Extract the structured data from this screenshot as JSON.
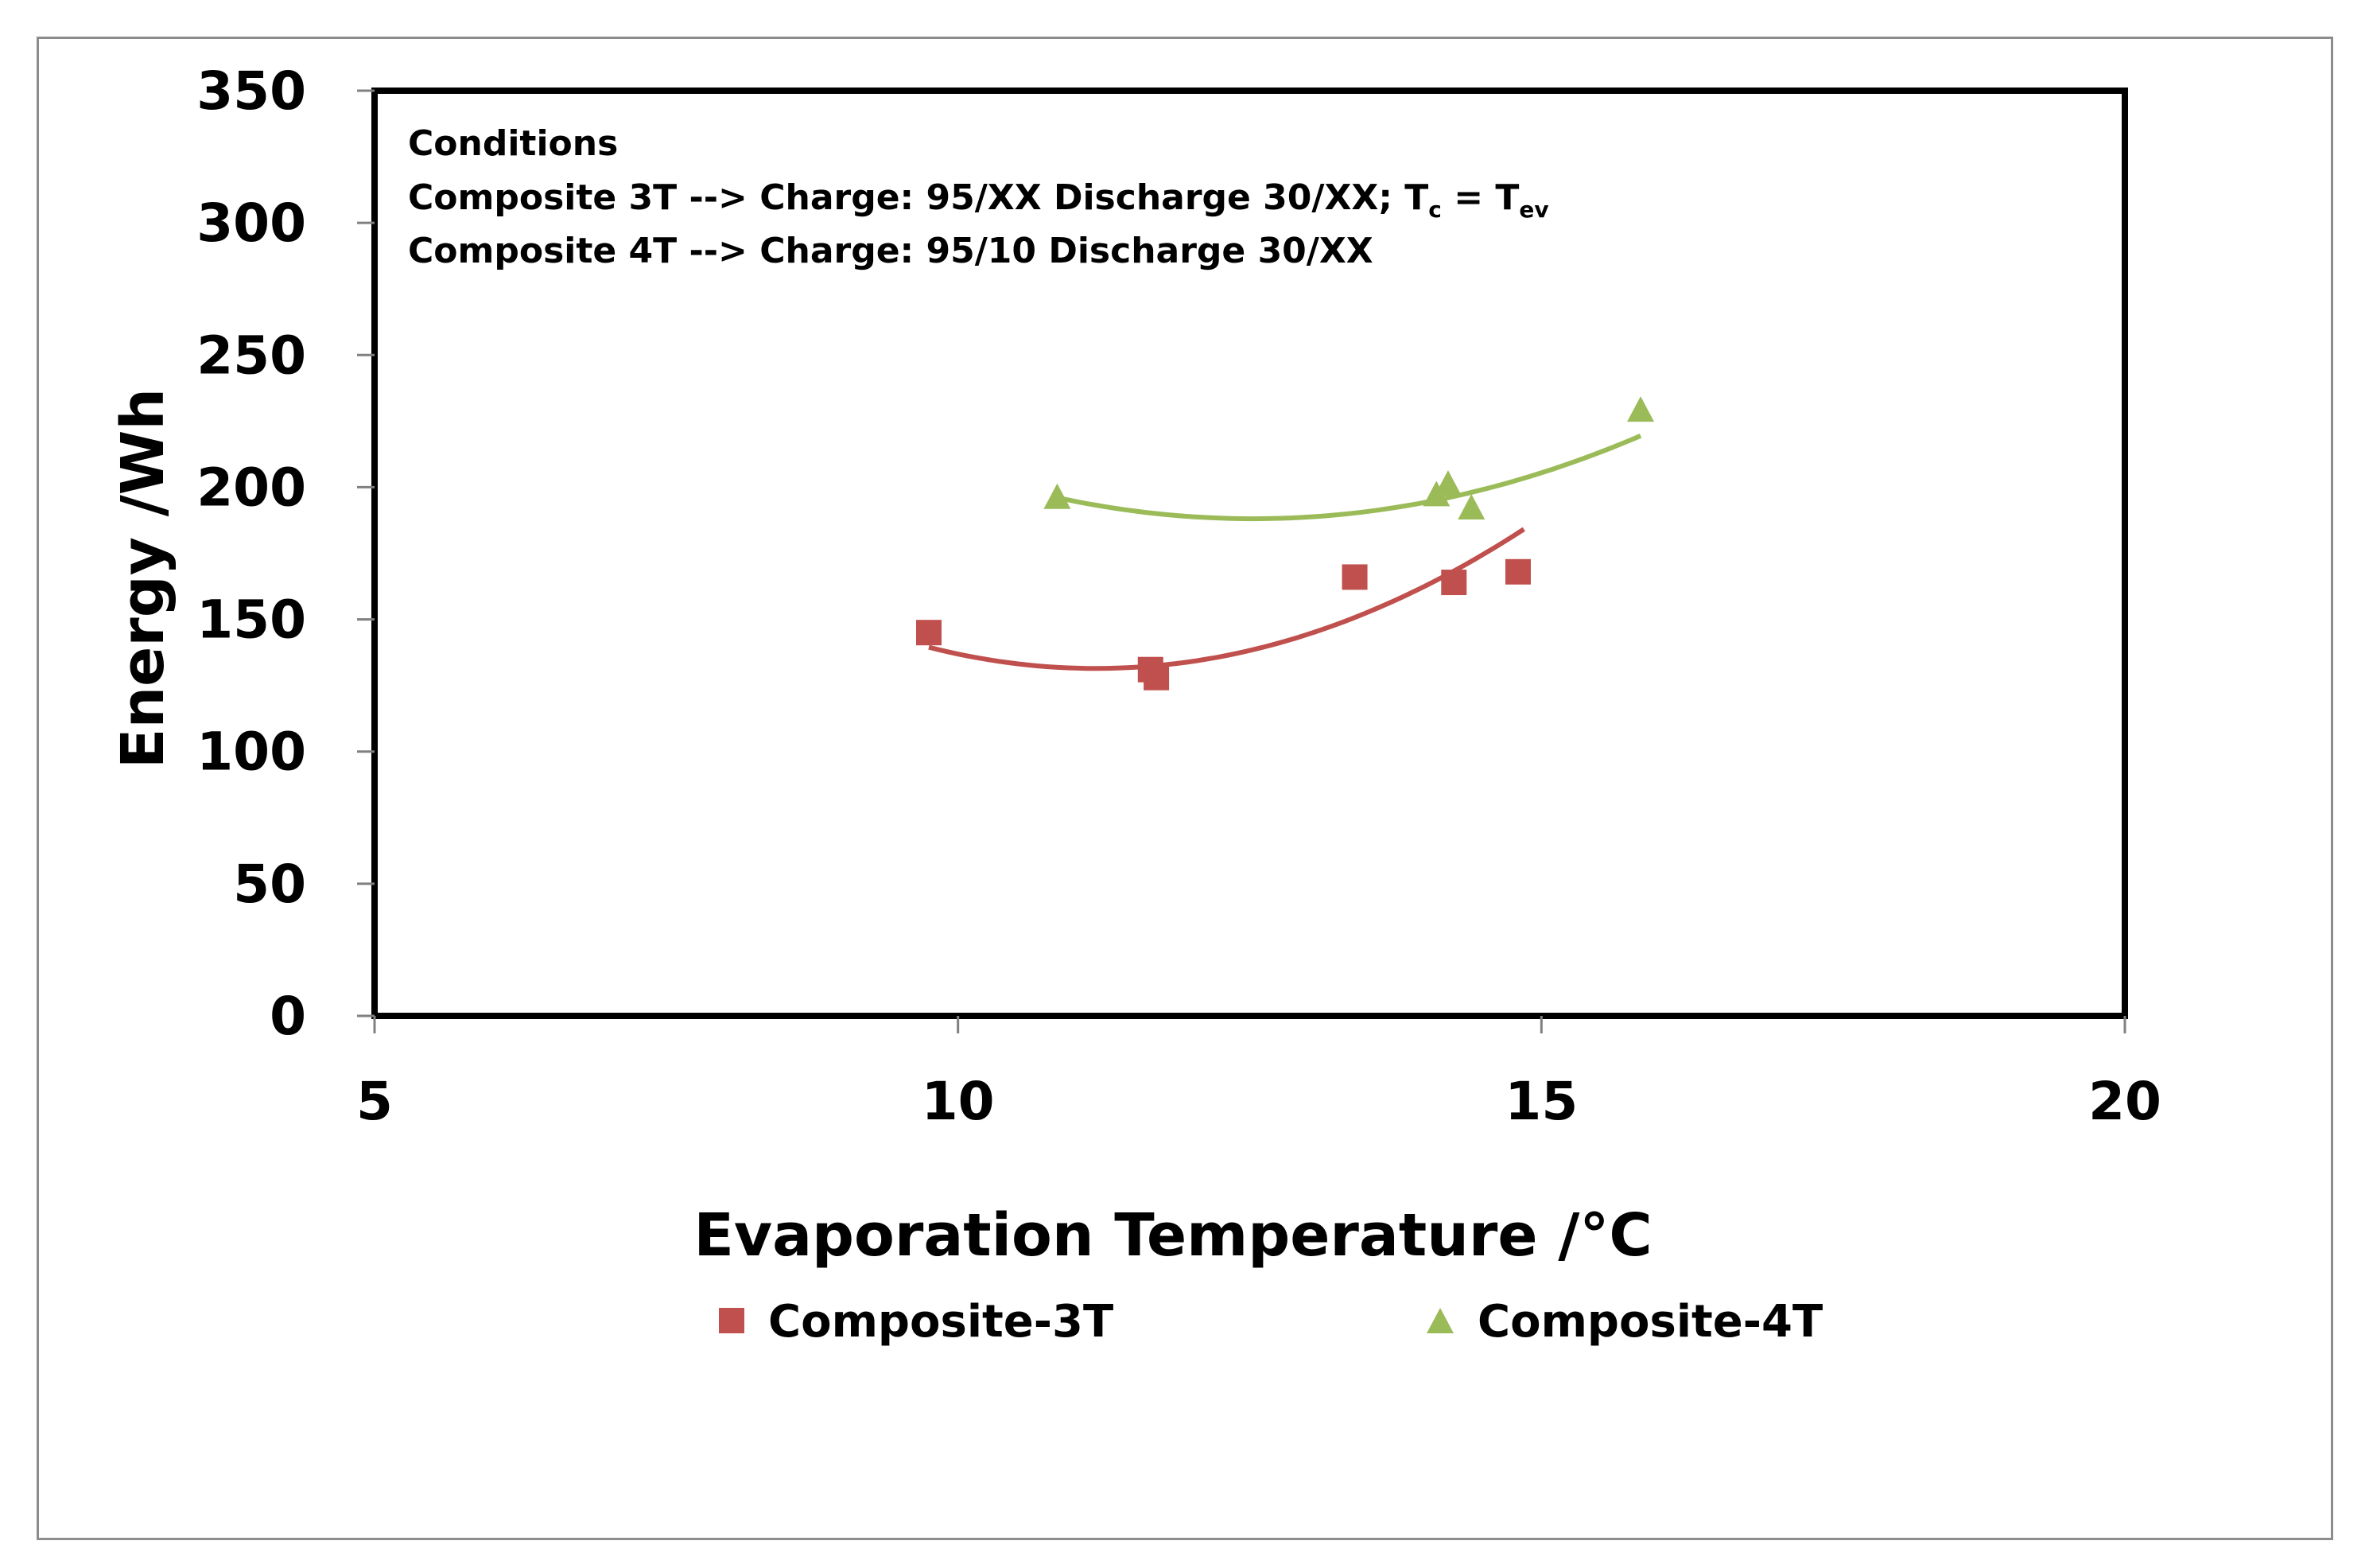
{
  "chart_data": {
    "type": "scatter",
    "title": "",
    "xlabel": "Evaporation Temperature /°C",
    "ylabel": "Energy /Wh",
    "xlim": [
      5,
      20
    ],
    "ylim": [
      0,
      350
    ],
    "x_ticks": [
      "5",
      "10",
      "15",
      "20"
    ],
    "y_ticks": [
      "0",
      "50",
      "100",
      "150",
      "200",
      "250",
      "300",
      "350"
    ],
    "grid": false,
    "legend_position": "bottom",
    "annotation": {
      "heading": "Conditions",
      "line1": "Composite 3T --> Charge:  95/XX Discharge 30/XX; T",
      "line1_sub_c": "c",
      "line1_eq": " = T",
      "line1_sub_ev": "ev",
      "line2": "Composite 4T --> Charge:  95/10 Discharge 30/XX"
    },
    "series": [
      {
        "name": "Composite-3T",
        "marker": "square",
        "color": "#c0504d",
        "points": [
          {
            "x": 9.75,
            "y": 145
          },
          {
            "x": 11.65,
            "y": 131
          },
          {
            "x": 11.7,
            "y": 128
          },
          {
            "x": 13.4,
            "y": 166
          },
          {
            "x": 14.25,
            "y": 164
          },
          {
            "x": 14.8,
            "y": 168
          }
        ],
        "trend": {
          "type": "polynomial-2",
          "x_range": [
            9.75,
            14.85
          ],
          "coefficients": [
            620.9,
            -87.55,
            3.915
          ]
        }
      },
      {
        "name": "Composite-4T",
        "marker": "triangle",
        "color": "#9bbb59",
        "points": [
          {
            "x": 10.85,
            "y": 196
          },
          {
            "x": 14.1,
            "y": 197
          },
          {
            "x": 14.2,
            "y": 201
          },
          {
            "x": 14.4,
            "y": 192
          },
          {
            "x": 15.85,
            "y": 229
          }
        ],
        "trend": {
          "type": "polynomial-2",
          "x_range": [
            10.85,
            15.85
          ],
          "coefficients": [
            633.7,
            -71.15,
            2.84
          ]
        }
      }
    ]
  }
}
